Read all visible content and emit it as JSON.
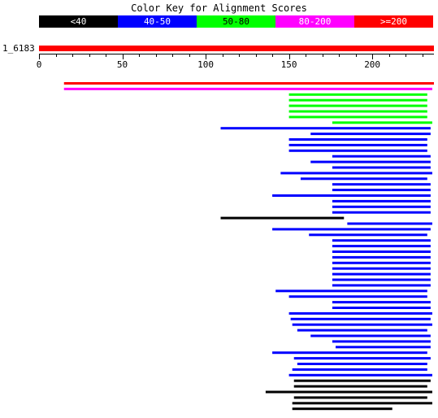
{
  "title": "Color Key for Alignment Scores",
  "color_key": [
    {
      "label": "<40",
      "color": "#000000",
      "text_color": "#ffffff"
    },
    {
      "label": "40-50",
      "color": "#0000ff",
      "text_color": "#ffffff"
    },
    {
      "label": "50-80",
      "color": "#00ff00",
      "text_color": "#000000"
    },
    {
      "label": "80-200",
      "color": "#ff00ff",
      "text_color": "#ffffff"
    },
    {
      "label": ">=200",
      "color": "#ff0000",
      "text_color": "#ffffff"
    }
  ],
  "query": {
    "label": "1_6183",
    "length": 237,
    "ticks": [
      0,
      50,
      100,
      150,
      200
    ]
  },
  "hits": [
    {
      "s": [
        [
          15,
          237
        ]
      ],
      "c": "#ff0000"
    },
    {
      "s": [
        [
          15,
          236
        ]
      ],
      "c": "#ff00ff"
    },
    {
      "s": [
        [
          150,
          233
        ]
      ],
      "c": "#00ff00"
    },
    {
      "s": [
        [
          150,
          233
        ]
      ],
      "c": "#00ff00"
    },
    {
      "s": [
        [
          150,
          233
        ]
      ],
      "c": "#00ff00"
    },
    {
      "s": [
        [
          150,
          233
        ]
      ],
      "c": "#00ff00"
    },
    {
      "s": [
        [
          150,
          233
        ]
      ],
      "c": "#00ff00"
    },
    {
      "s": [
        [
          176,
          236
        ]
      ],
      "c": "#00ff00"
    },
    {
      "s": [
        [
          109,
          235
        ]
      ],
      "c": "#0000ff"
    },
    {
      "s": [
        [
          163,
          235
        ]
      ],
      "c": "#0000ff"
    },
    {
      "s": [
        [
          150,
          233
        ]
      ],
      "c": "#0000ff"
    },
    {
      "s": [
        [
          150,
          233
        ]
      ],
      "c": "#0000ff"
    },
    {
      "s": [
        [
          150,
          233
        ]
      ],
      "c": "#0000ff"
    },
    {
      "s": [
        [
          176,
          235
        ]
      ],
      "c": "#0000ff"
    },
    {
      "s": [
        [
          163,
          235
        ]
      ],
      "c": "#0000ff"
    },
    {
      "s": [
        [
          176,
          235
        ]
      ],
      "c": "#0000ff"
    },
    {
      "s": [
        [
          145,
          236
        ]
      ],
      "c": "#0000ff"
    },
    {
      "s": [
        [
          157,
          233
        ]
      ],
      "c": "#0000ff"
    },
    {
      "s": [
        [
          176,
          235
        ]
      ],
      "c": "#0000ff"
    },
    {
      "s": [
        [
          176,
          235
        ]
      ],
      "c": "#0000ff"
    },
    {
      "s": [
        [
          140,
          235
        ]
      ],
      "c": "#0000ff"
    },
    {
      "s": [
        [
          176,
          235
        ]
      ],
      "c": "#0000ff"
    },
    {
      "s": [
        [
          176,
          235
        ]
      ],
      "c": "#0000ff"
    },
    {
      "s": [
        [
          176,
          235
        ]
      ],
      "c": "#0000ff"
    },
    {
      "s": [
        [
          109,
          183
        ]
      ],
      "c": "#000000"
    },
    {
      "s": [
        [
          185,
          236
        ]
      ],
      "c": "#0000ff"
    },
    {
      "s": [
        [
          140,
          235
        ]
      ],
      "c": "#0000ff"
    },
    {
      "s": [
        [
          162,
          233
        ]
      ],
      "c": "#0000ff"
    },
    {
      "s": [
        [
          176,
          235
        ]
      ],
      "c": "#0000ff"
    },
    {
      "s": [
        [
          176,
          235
        ]
      ],
      "c": "#0000ff"
    },
    {
      "s": [
        [
          176,
          235
        ]
      ],
      "c": "#0000ff"
    },
    {
      "s": [
        [
          176,
          235
        ]
      ],
      "c": "#0000ff"
    },
    {
      "s": [
        [
          176,
          235
        ]
      ],
      "c": "#0000ff"
    },
    {
      "s": [
        [
          176,
          235
        ]
      ],
      "c": "#0000ff"
    },
    {
      "s": [
        [
          176,
          235
        ]
      ],
      "c": "#0000ff"
    },
    {
      "s": [
        [
          176,
          235
        ]
      ],
      "c": "#0000ff"
    },
    {
      "s": [
        [
          176,
          235
        ]
      ],
      "c": "#0000ff"
    },
    {
      "s": [
        [
          142,
          233
        ]
      ],
      "c": "#0000ff"
    },
    {
      "s": [
        [
          150,
          233
        ]
      ],
      "c": "#0000ff"
    },
    {
      "s": [
        [
          176,
          235
        ]
      ],
      "c": "#0000ff"
    },
    {
      "s": [
        [
          176,
          235
        ]
      ],
      "c": "#0000ff"
    },
    {
      "s": [
        [
          150,
          236
        ]
      ],
      "c": "#0000ff"
    },
    {
      "s": [
        [
          151,
          235
        ]
      ],
      "c": "#0000ff"
    },
    {
      "s": [
        [
          152,
          236
        ]
      ],
      "c": "#0000ff"
    },
    {
      "s": [
        [
          155,
          233
        ]
      ],
      "c": "#0000ff"
    },
    {
      "s": [
        [
          163,
          235
        ]
      ],
      "c": "#0000ff"
    },
    {
      "s": [
        [
          176,
          235
        ]
      ],
      "c": "#0000ff"
    },
    {
      "s": [
        [
          178,
          235
        ]
      ],
      "c": "#0000ff"
    },
    {
      "s": [
        [
          140,
          233
        ]
      ],
      "c": "#0000ff"
    },
    {
      "s": [
        [
          153,
          235
        ]
      ],
      "c": "#0000ff"
    },
    {
      "s": [
        [
          155,
          233
        ]
      ],
      "c": "#0000ff"
    },
    {
      "s": [
        [
          152,
          233
        ]
      ],
      "c": "#0000ff"
    },
    {
      "s": [
        [
          150,
          236
        ]
      ],
      "c": "#0000ff"
    },
    {
      "s": [
        [
          153,
          235
        ]
      ],
      "c": "#000000"
    },
    {
      "s": [
        [
          153,
          233
        ]
      ],
      "c": "#000000"
    },
    {
      "s": [
        [
          136,
          236
        ]
      ],
      "c": "#000000"
    },
    {
      "s": [
        [
          153,
          233
        ]
      ],
      "c": "#000000"
    },
    {
      "s": [
        [
          152,
          236
        ]
      ],
      "c": "#000000"
    },
    {
      "s": [
        [
          152,
          212
        ]
      ],
      "c": "#000000"
    }
  ]
}
